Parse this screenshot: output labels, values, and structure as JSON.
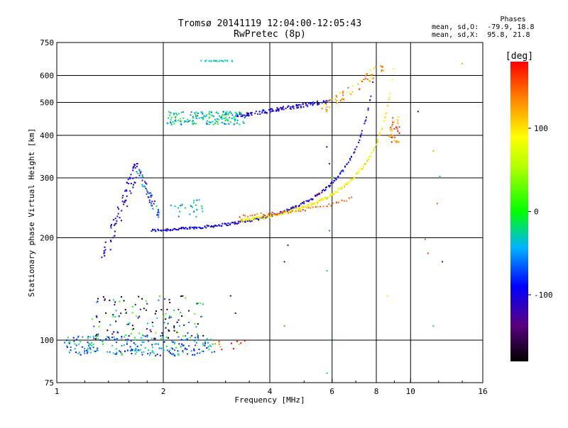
{
  "header": {
    "title_line1": "Tromsø 20141119 12:04:00-12:05:43",
    "title_line2": "RwPretec (8p)",
    "phases_title": "Phases",
    "phase_o": "mean, sd,O:  -79.9, 18.8",
    "phase_x": "mean, sd,X:  95.8, 21.8"
  },
  "colorbar": {
    "label": "[deg]",
    "range": [
      -180,
      180
    ],
    "ticks": [
      {
        "value": 100,
        "label": "100"
      },
      {
        "value": 0,
        "label": "0"
      },
      {
        "value": -100,
        "label": "-100"
      }
    ]
  },
  "chart_data": {
    "type": "scatter",
    "title": "Tromsø 20141119 12:04:00-12:05:43",
    "subtitle": "RwPretec (8p)",
    "xlabel": "Frequency [MHz]",
    "ylabel": "Stationary phase Virtual Height [km]",
    "x_scale": "log",
    "y_scale": "log",
    "xlim": [
      1,
      16
    ],
    "ylim": [
      75,
      750
    ],
    "grid": true,
    "x_ticks": [
      {
        "value": 1,
        "label": "1"
      },
      {
        "value": 2,
        "label": "2"
      },
      {
        "value": 4,
        "label": "4"
      },
      {
        "value": 6,
        "label": "6"
      },
      {
        "value": 8,
        "label": "8"
      },
      {
        "value": 10,
        "label": "10"
      },
      {
        "value": 16,
        "label": "16"
      }
    ],
    "y_ticks": [
      {
        "value": 75,
        "label": "75"
      },
      {
        "value": 100,
        "label": "100"
      },
      {
        "value": 200,
        "label": "200"
      },
      {
        "value": 300,
        "label": "300"
      },
      {
        "value": 400,
        "label": "400"
      },
      {
        "value": 500,
        "label": "500"
      },
      {
        "value": 600,
        "label": "600"
      },
      {
        "value": 750,
        "label": "750"
      }
    ],
    "color_variable": "phase [deg]",
    "traces": [
      {
        "f0": 1.85,
        "f1": 7.8,
        "h0": 210,
        "h1": 560,
        "pole": 8.3,
        "phase": -100,
        "jitter": 0.012,
        "n": 230
      },
      {
        "f0": 3.3,
        "f1": 8.9,
        "h0": 225,
        "h1": 600,
        "pole": 9.35,
        "phase": 95,
        "jitter": 0.014,
        "n": 190
      },
      {
        "f0": 3.3,
        "f1": 6.8,
        "h0": 232,
        "h1": 262,
        "pole": 9.6,
        "phase": 150,
        "jitter": 0.012,
        "n": 45
      }
    ],
    "clusters": [
      {
        "f": [
          3.2,
          5.9
        ],
        "h": [
          455,
          505
        ],
        "phase": -100,
        "spread": 22,
        "n": 130,
        "shape": "rising"
      },
      {
        "f": [
          2.05,
          3.4
        ],
        "h": [
          430,
          470
        ],
        "phase": -30,
        "spread": 25,
        "n": 160,
        "shape": "flat"
      },
      {
        "f": [
          5.6,
          8.4
        ],
        "h": [
          470,
          640
        ],
        "phase": 120,
        "spread": 25,
        "n": 60,
        "shape": "rising"
      },
      {
        "f": [
          1.33,
          1.7
        ],
        "h": [
          165,
          330
        ],
        "phase": -100,
        "spread": 10,
        "n": 70,
        "shape": "rising"
      },
      {
        "f": [
          1.68,
          1.95
        ],
        "h": [
          230,
          320
        ],
        "phase": -80,
        "spread": 40,
        "n": 55,
        "shape": "falling"
      },
      {
        "f": [
          1.05,
          2.8
        ],
        "h": [
          90,
          103
        ],
        "phase": -55,
        "spread": 30,
        "n": 230,
        "shape": "flat"
      },
      {
        "f": [
          1.25,
          2.6
        ],
        "h": [
          100,
          135
        ],
        "phase": -100,
        "spread": 90,
        "n": 140,
        "shape": "flat"
      },
      {
        "f": [
          2.1,
          2.6
        ],
        "h": [
          230,
          260
        ],
        "phase": -40,
        "spread": 20,
        "n": 25,
        "shape": "flat"
      },
      {
        "f": [
          2.55,
          3.2
        ],
        "h": [
          660,
          665
        ],
        "phase": -30,
        "spread": 8,
        "n": 20,
        "shape": "flat"
      },
      {
        "f": [
          8.7,
          9.3
        ],
        "h": [
          380,
          460
        ],
        "phase": 140,
        "spread": 30,
        "n": 35,
        "shape": "flat"
      },
      {
        "f": [
          2.8,
          3.4
        ],
        "h": [
          93,
          100
        ],
        "phase": 150,
        "spread": 40,
        "n": 12,
        "shape": "flat"
      }
    ],
    "outliers": [
      {
        "x": 4.4,
        "y": 170,
        "phase": -140
      },
      {
        "x": 4.5,
        "y": 190,
        "phase": -80
      },
      {
        "x": 5.8,
        "y": 160,
        "phase": -30
      },
      {
        "x": 5.9,
        "y": 210,
        "phase": -60
      },
      {
        "x": 5.8,
        "y": 260,
        "phase": 40
      },
      {
        "x": 5.9,
        "y": 330,
        "phase": -140
      },
      {
        "x": 5.8,
        "y": 370,
        "phase": -100
      },
      {
        "x": 6.0,
        "y": 300,
        "phase": 20
      },
      {
        "x": 4.4,
        "y": 110,
        "phase": 150
      },
      {
        "x": 5.8,
        "y": 80,
        "phase": -20
      },
      {
        "x": 5.9,
        "y": 100,
        "phase": -40
      },
      {
        "x": 10.5,
        "y": 470,
        "phase": -160
      },
      {
        "x": 11.6,
        "y": 360,
        "phase": 120
      },
      {
        "x": 11.9,
        "y": 252,
        "phase": 150
      },
      {
        "x": 11.6,
        "y": 110,
        "phase": -20
      },
      {
        "x": 12.1,
        "y": 303,
        "phase": -20
      },
      {
        "x": 11.0,
        "y": 198,
        "phase": 150
      },
      {
        "x": 11.2,
        "y": 180,
        "phase": 160
      },
      {
        "x": 14.0,
        "y": 650,
        "phase": 120
      },
      {
        "x": 3.1,
        "y": 135,
        "phase": -150
      },
      {
        "x": 3.2,
        "y": 120,
        "phase": -120
      },
      {
        "x": 5.5,
        "y": 270,
        "phase": 180
      },
      {
        "x": 8.6,
        "y": 135,
        "phase": 100
      },
      {
        "x": 12.3,
        "y": 170,
        "phase": -120
      }
    ]
  }
}
